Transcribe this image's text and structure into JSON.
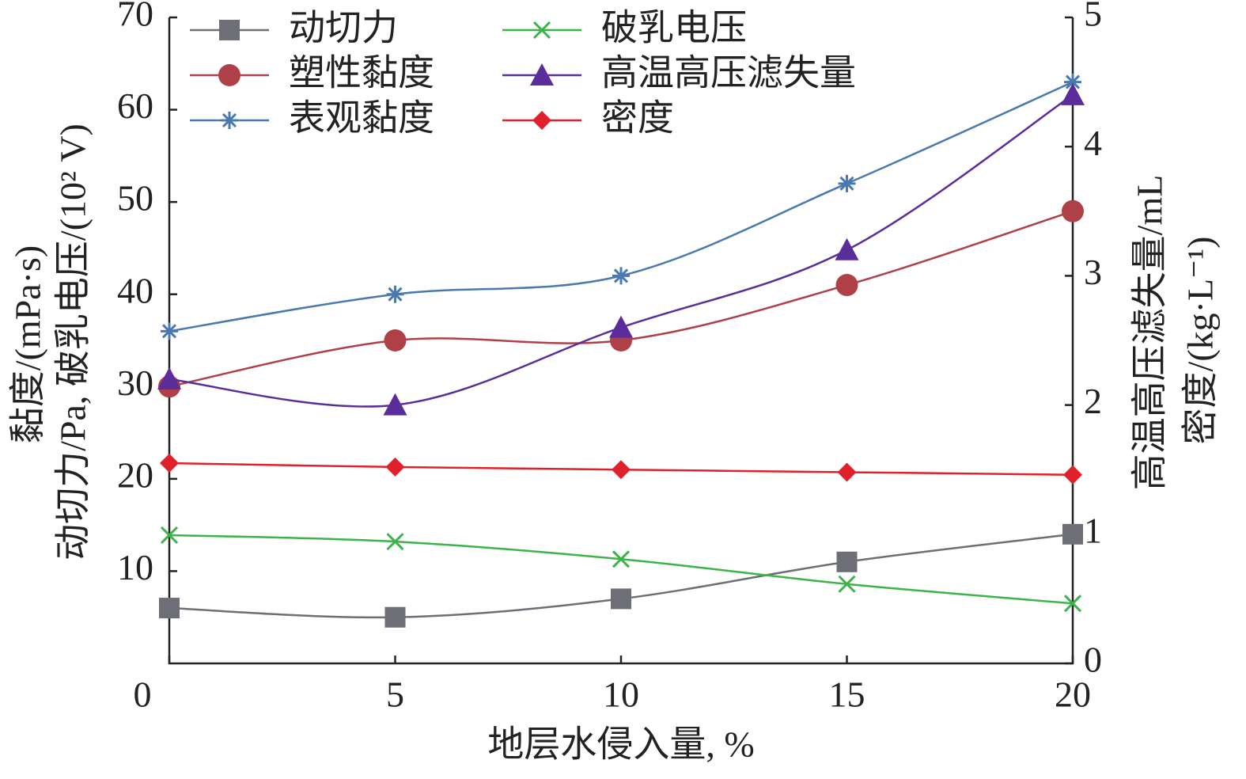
{
  "chart_data": {
    "type": "line",
    "xlabel": "地层水侵入量, %",
    "ylabel": [
      "黏度/(mPa·s)",
      "动切力/Pa, 破乳电压/(10² V)"
    ],
    "y2label": [
      "高温高压滤失量/mL",
      "密度/(kg·L⁻¹)"
    ],
    "x": [
      0,
      5,
      10,
      15,
      20
    ],
    "xlim": [
      0,
      20
    ],
    "xticks": [
      0,
      5,
      10,
      15,
      20
    ],
    "ylim": [
      0,
      70
    ],
    "yticks": [
      10,
      20,
      30,
      40,
      50,
      60,
      70
    ],
    "y2lim": [
      0,
      5
    ],
    "y2ticks": [
      0,
      1,
      2,
      3,
      4,
      5
    ],
    "smooth": true,
    "series": [
      {
        "name": "动切力",
        "color": "#6d6e76",
        "marker": "square",
        "values": [
          6,
          5,
          7,
          11,
          14
        ]
      },
      {
        "name": "塑性黏度",
        "color": "#b04048",
        "marker": "circle",
        "values": [
          30,
          35,
          35,
          41,
          49
        ]
      },
      {
        "name": "表观黏度",
        "color": "#4a78b0",
        "marker": "star",
        "values": [
          36,
          40,
          42,
          52,
          63
        ]
      },
      {
        "name": "破乳电压",
        "color": "#3cb44a",
        "marker": "x",
        "values": [
          13.9,
          13.2,
          11.3,
          8.6,
          6.5
        ]
      },
      {
        "name": "高温高压滤失量",
        "color": "#5b2d9a",
        "marker": "triangle",
        "axis": "y2",
        "values": [
          2.2,
          2.0,
          2.6,
          3.2,
          4.4
        ]
      },
      {
        "name": "密度",
        "color": "#e0202a",
        "marker": "diamond",
        "axis": "y2",
        "values": [
          1.55,
          1.52,
          1.5,
          1.48,
          1.46
        ]
      }
    ]
  }
}
